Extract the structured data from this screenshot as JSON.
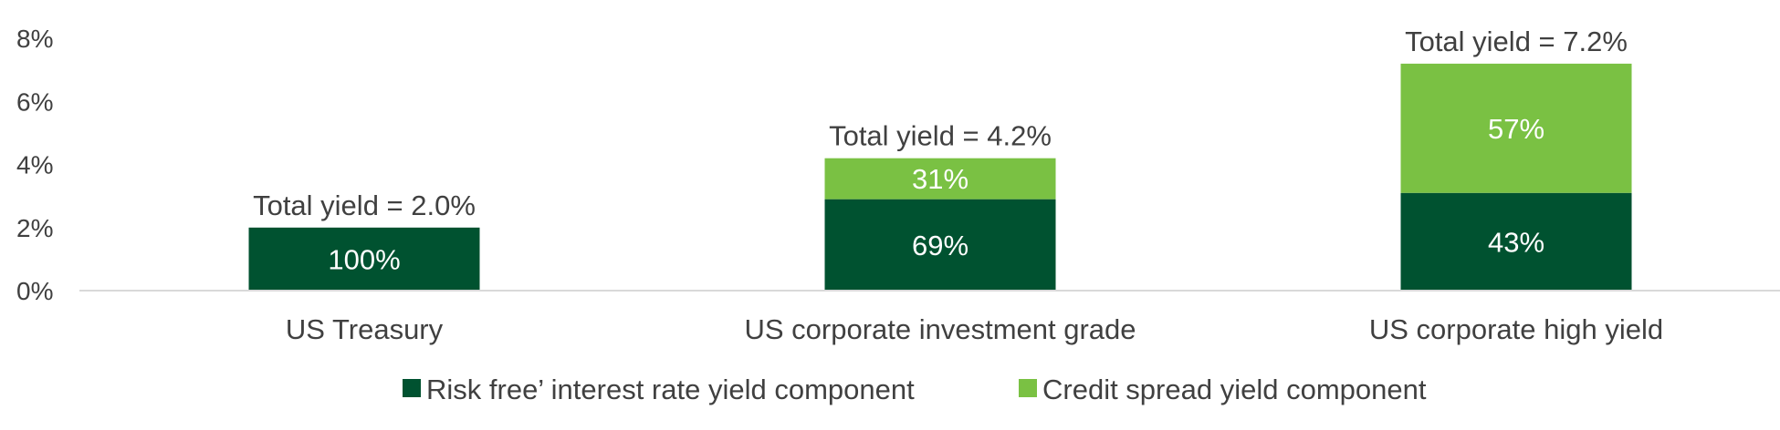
{
  "chart_data": {
    "type": "bar",
    "stacked": true,
    "categories": [
      "US Treasury",
      "US corporate investment grade",
      "US corporate high yield"
    ],
    "series": [
      {
        "name": "Risk free’ interest rate yield component",
        "color": "#005230",
        "values": [
          2.0,
          2.9,
          3.1
        ],
        "labels": [
          "100%",
          "69%",
          "43%"
        ]
      },
      {
        "name": "Credit spread yield component",
        "color": "#7ac143",
        "values": [
          0,
          1.3,
          4.1
        ],
        "labels": [
          "",
          "31%",
          "57%"
        ]
      }
    ],
    "totals": [
      "Total yield = 2.0%",
      "Total yield = 4.2%",
      "Total yield = 7.2%"
    ],
    "y_ticks": [
      "0%",
      "2%",
      "4%",
      "6%",
      "8%"
    ],
    "ylim": [
      0,
      8
    ],
    "grid": false,
    "legend_position": "bottom-center",
    "axis_color": "#d9d9d9"
  }
}
